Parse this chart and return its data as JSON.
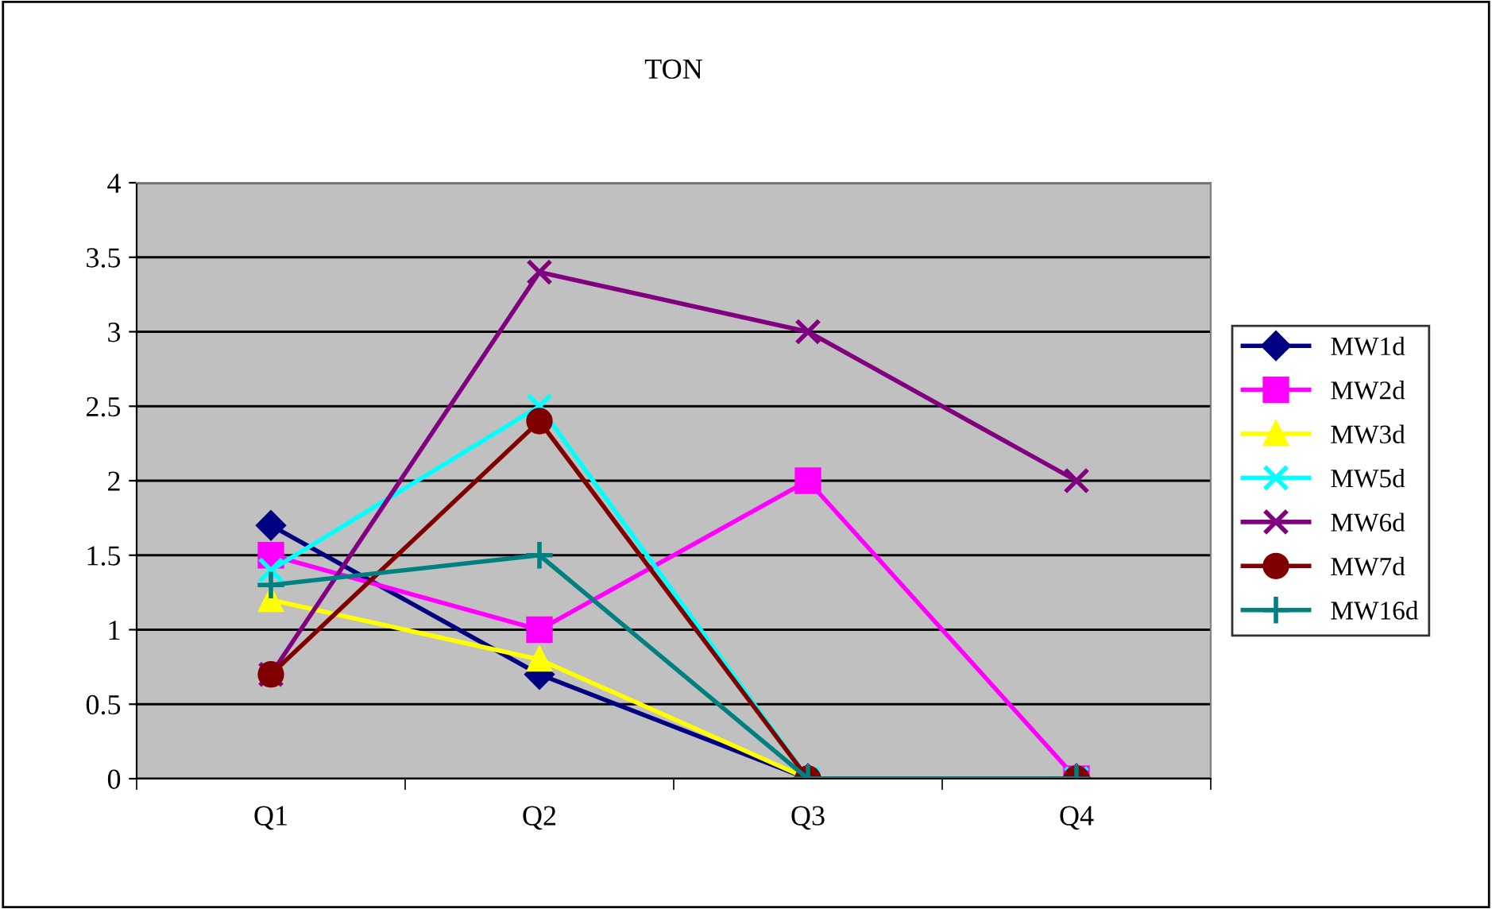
{
  "chart_data": {
    "type": "line",
    "title": "TON",
    "categories": [
      "Q1",
      "Q2",
      "Q3",
      "Q4"
    ],
    "ylim": [
      0,
      4
    ],
    "yticks": [
      0,
      0.5,
      1,
      1.5,
      2,
      2.5,
      3,
      3.5,
      4
    ],
    "grid": "y",
    "legend": "right",
    "series": [
      {
        "name": "MW1d",
        "color": "#000080",
        "marker": "diamond",
        "values": [
          1.7,
          0.7,
          0,
          0
        ]
      },
      {
        "name": "MW2d",
        "color": "#ff00ff",
        "marker": "square",
        "values": [
          1.5,
          1.0,
          2,
          0
        ]
      },
      {
        "name": "MW3d",
        "color": "#ffff00",
        "marker": "triangle",
        "values": [
          1.2,
          0.8,
          0,
          0
        ]
      },
      {
        "name": "MW5d",
        "color": "#00ffff",
        "marker": "cross",
        "values": [
          1.4,
          2.5,
          0,
          0
        ]
      },
      {
        "name": "MW6d",
        "color": "#800080",
        "marker": "cross",
        "values": [
          0.7,
          3.4,
          3,
          2
        ]
      },
      {
        "name": "MW7d",
        "color": "#800000",
        "marker": "circle",
        "values": [
          0.7,
          2.4,
          0,
          0
        ]
      },
      {
        "name": "MW16d",
        "color": "#008080",
        "marker": "plus",
        "values": [
          1.3,
          1.5,
          0,
          0
        ]
      }
    ]
  }
}
